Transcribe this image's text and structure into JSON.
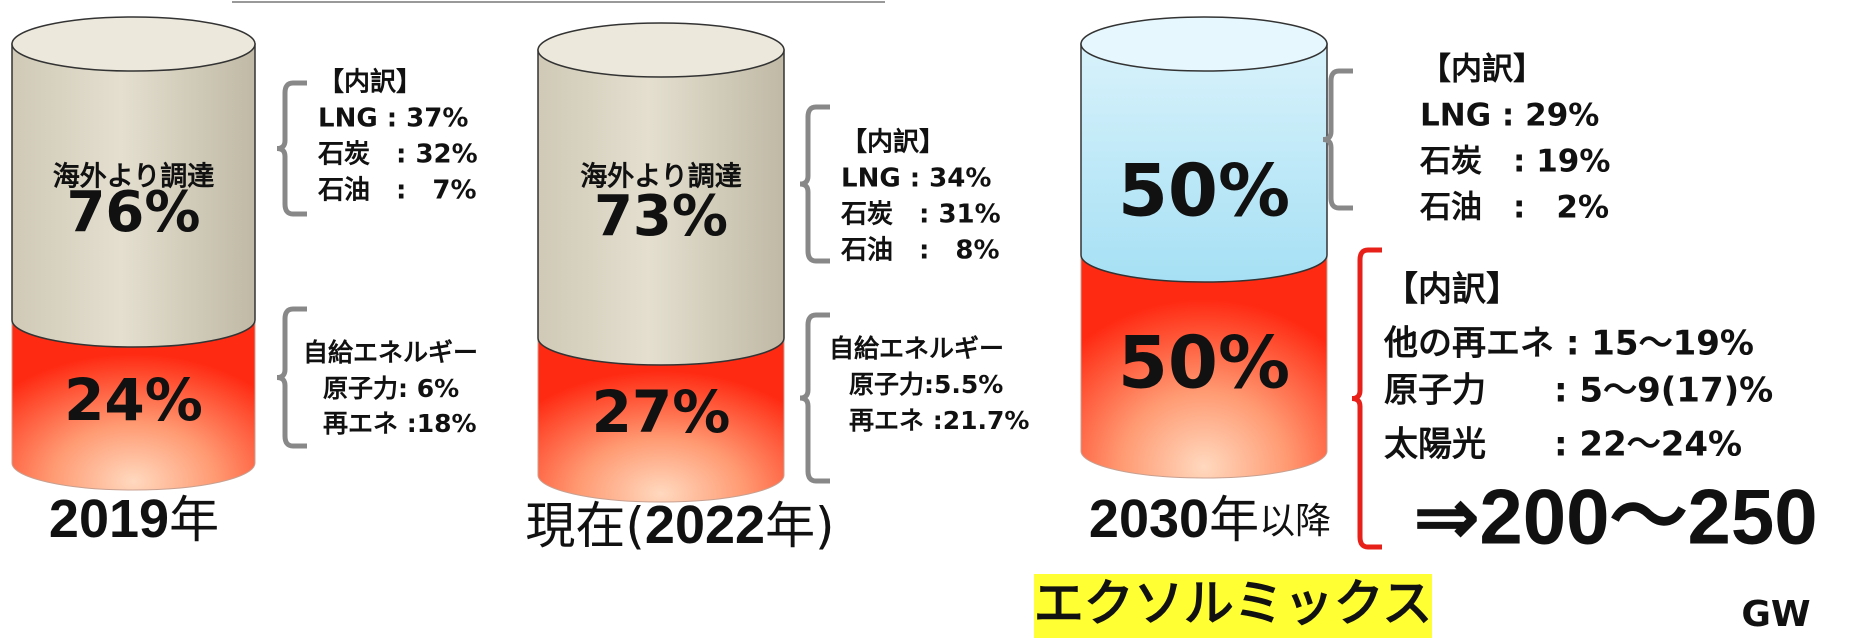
{
  "cylinders": [
    {
      "overseas_label": "海外より調達",
      "overseas_share": "76%",
      "domestic_share": "24%",
      "year_label": [
        "2019",
        "年"
      ],
      "overseas_breakdown": [
        "【内訳】",
        "LNG : 37%",
        "石炭　: 32%",
        "石油　:　7%"
      ],
      "domestic_breakdown": [
        "自給エネルギー",
        "原子力:  6%",
        "再エネ :18%"
      ]
    },
    {
      "overseas_label": "海外より調達",
      "overseas_share": "73%",
      "domestic_share": "27%",
      "year_label": [
        "現在(",
        "2022",
        "年)"
      ],
      "overseas_breakdown": [
        "【内訳】",
        "LNG : 34%",
        "石炭　: 31%",
        "石油　:　8%"
      ],
      "domestic_breakdown": [
        "自給エネルギー",
        "原子力:5.5%",
        "再エネ :21.7%"
      ]
    },
    {
      "overseas_share": "50%",
      "domestic_share": "50%",
      "year_label": [
        "2030",
        "年",
        "以降"
      ],
      "overseas_breakdown": [
        "【内訳】",
        "LNG : 29%",
        "石炭　: 19%",
        "石油　:　2%"
      ],
      "domestic_breakdown": [
        "【内訳】",
        "他の再エネ : 15～19%",
        "原子力　　: 5～9(17)%",
        "太陽光　　: 22～24%"
      ]
    }
  ],
  "target": "⇒200～250",
  "target_unit": "GW",
  "brand": "エクソルミックス"
}
